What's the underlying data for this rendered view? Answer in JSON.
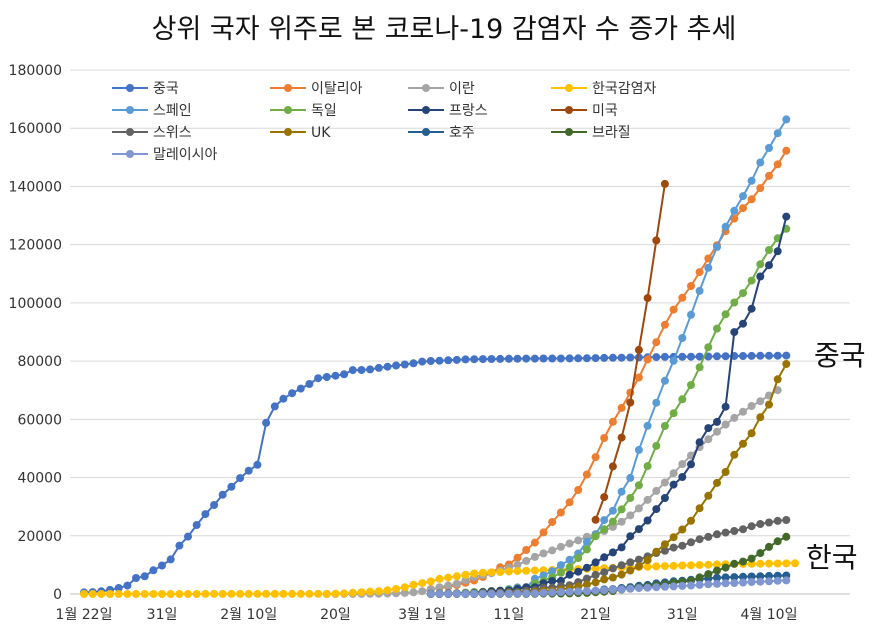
{
  "chart_data": {
    "type": "line",
    "title": "상위 국자 위주로 본 코로나-19 감염자 수 증가 추세",
    "xlabel": "",
    "ylabel": "",
    "ylim": [
      0,
      180000
    ],
    "yticks": [
      0,
      20000,
      40000,
      60000,
      80000,
      100000,
      120000,
      140000,
      160000,
      180000
    ],
    "xlim": [
      0,
      82
    ],
    "xticks": [
      {
        "day": 0,
        "label": "1월 22일"
      },
      {
        "day": 9,
        "label": "31일"
      },
      {
        "day": 19,
        "label": "2월 10일"
      },
      {
        "day": 29,
        "label": "20일"
      },
      {
        "day": 39,
        "label": "3월 1일"
      },
      {
        "day": 49,
        "label": "11일"
      },
      {
        "day": 59,
        "label": "21일"
      },
      {
        "day": 69,
        "label": "31일"
      },
      {
        "day": 79,
        "label": "4월 10일"
      }
    ],
    "grid": "horizontal",
    "legend_position": "top-left",
    "annotations": [
      {
        "text": "중국",
        "series": "중국"
      },
      {
        "text": "한국",
        "series": "한국감염자"
      }
    ],
    "series": [
      {
        "name": "중국",
        "color": "#4472c4",
        "start": 0,
        "values": [
          548,
          643,
          920,
          1406,
          2075,
          2877,
          5509,
          6087,
          8141,
          9802,
          11891,
          16630,
          19716,
          23707,
          27440,
          30587,
          34110,
          36814,
          39829,
          42354,
          44386,
          58818,
          64438,
          67100,
          68992,
          70548,
          72134,
          74138,
          74546,
          74999,
          75472,
          76922,
          76938,
          77152,
          77660,
          78065,
          78498,
          78824,
          79251,
          79826,
          80026,
          80151,
          80271,
          80422,
          80573,
          80652,
          80699,
          80735,
          80757,
          80793,
          80826,
          80849,
          80868,
          80881,
          80894,
          80904,
          80924,
          80955,
          80992,
          81030,
          81093,
          81125,
          81184,
          81236,
          81282,
          81317,
          81367,
          81439,
          81463,
          81488,
          81502,
          81550,
          81600,
          81650,
          81700,
          81740,
          81770,
          81800,
          81820,
          81850,
          81870,
          81900
        ]
      },
      {
        "name": "이탈리아",
        "color": "#ed7d31",
        "start": 40,
        "values": [
          1700,
          2036,
          2502,
          3089,
          3858,
          4636,
          5883,
          7375,
          9172,
          10149,
          12462,
          15113,
          17660,
          21157,
          24747,
          27980,
          31506,
          35713,
          41035,
          47021,
          53578,
          59138,
          63927,
          69176,
          74386,
          80589,
          86498,
          92472,
          97689,
          101739,
          105792,
          110574,
          115242,
          119827,
          124632,
          128948,
          132547,
          135586,
          139422,
          143626,
          147577,
          152271
        ]
      },
      {
        "name": "이란",
        "color": "#a5a5a5",
        "start": 28,
        "values": [
          2,
          5,
          18,
          28,
          43,
          61,
          95,
          139,
          245,
          388,
          593,
          978,
          1501,
          2336,
          2922,
          3513,
          4747,
          5823,
          6566,
          7161,
          8042,
          9000,
          10075,
          11364,
          12729,
          13938,
          14991,
          16169,
          17361,
          18407,
          19644,
          20610,
          21638,
          23049,
          24811,
          27017,
          29406,
          32332,
          35408,
          38309,
          41495,
          44605,
          47593,
          50468,
          53183,
          55743,
          58226,
          60500,
          62589,
          64586,
          66220,
          68192,
          70029
        ]
      },
      {
        "name": "한국감염자",
        "color": "#ffc000",
        "start": 0,
        "values": [
          1,
          1,
          2,
          2,
          3,
          4,
          4,
          4,
          4,
          11,
          12,
          15,
          15,
          16,
          19,
          23,
          24,
          24,
          25,
          27,
          28,
          28,
          28,
          28,
          28,
          29,
          30,
          31,
          51,
          104,
          204,
          433,
          602,
          833,
          977,
          1261,
          1766,
          2337,
          3150,
          3736,
          4335,
          5186,
          5621,
          6088,
          6593,
          7041,
          7314,
          7478,
          7513,
          7755,
          7869,
          7979,
          8086,
          8162,
          8236,
          8320,
          8413,
          8565,
          8652,
          8799,
          8897,
          8961,
          9037,
          9137,
          9241,
          9332,
          9478,
          9583,
          9661,
          9786,
          9887,
          9976,
          10062,
          10156,
          10237,
          10284,
          10331,
          10384,
          10423,
          10450,
          10480,
          10512,
          10537
        ]
      },
      {
        "name": "스페인",
        "color": "#5b9bd5",
        "start": 40,
        "values": [
          84,
          120,
          165,
          222,
          259,
          400,
          500,
          673,
          1073,
          1695,
          2277,
          2277,
          5232,
          6391,
          7798,
          9942,
          11748,
          13910,
          17963,
          20410,
          25374,
          28603,
          35136,
          39885,
          49515,
          57786,
          65719,
          73235,
          80110,
          87956,
          95923,
          104118,
          112065,
          119199,
          126168,
          131646,
          136675,
          141942,
          148220,
          153222,
          158273,
          163027
        ]
      },
      {
        "name": "독일",
        "color": "#70ad47",
        "start": 40,
        "values": [
          130,
          159,
          196,
          262,
          482,
          670,
          799,
          1040,
          1176,
          1457,
          1908,
          2078,
          3675,
          4585,
          5795,
          7272,
          9257,
          12327,
          15320,
          19848,
          22213,
          24873,
          29056,
          32986,
          37323,
          43938,
          50871,
          57695,
          62095,
          66885,
          71808,
          77872,
          84794,
          91159,
          96092,
          100123,
          103374,
          107663,
          113296,
          118181,
          122171,
          125452
        ]
      },
      {
        "name": "프랑스",
        "color": "#264478",
        "start": 40,
        "values": [
          100,
          130,
          191,
          204,
          288,
          380,
          656,
          959,
          1136,
          1219,
          1794,
          2293,
          2293,
          3661,
          4469,
          4499,
          6633,
          7652,
          9043,
          10871,
          12612,
          14282,
          16018,
          19856,
          22304,
          25233,
          29155,
          32964,
          37575,
          40174,
          44550,
          52128,
          56989,
          59105,
          64338,
          89953,
          92839,
          98010,
          109069,
          112950,
          117749,
          129654
        ]
      },
      {
        "name": "미국",
        "color": "#9e480e",
        "start": 59,
        "values": [
          25489,
          33276,
          43847,
          53740,
          65778,
          83836,
          101657,
          121478,
          140886
        ]
      },
      {
        "name": "스위스",
        "color": "#636363",
        "start": 40,
        "values": [
          42,
          56,
          90,
          114,
          214,
          268,
          337,
          374,
          491,
          652,
          652,
          1139,
          1359,
          2200,
          2200,
          2700,
          3028,
          4075,
          5294,
          6575,
          7474,
          8795,
          9877,
          10897,
          11811,
          12928,
          14076,
          14829,
          15922,
          16605,
          17768,
          18827,
          19606,
          20505,
          21100,
          21657,
          22253,
          23280,
          24051,
          24551,
          25107,
          25415
        ]
      },
      {
        "name": "UK",
        "color": "#997300",
        "start": 40,
        "values": [
          36,
          40,
          51,
          85,
          115,
          163,
          206,
          273,
          321,
          382,
          456,
          456,
          798,
          1140,
          1140,
          1543,
          1950,
          2626,
          3269,
          3983,
          5018,
          5683,
          6650,
          8077,
          9529,
          11658,
          14543,
          17089,
          19522,
          22141,
          25150,
          29474,
          33718,
          38168,
          41903,
          47806,
          51608,
          55242,
          60733,
          65077,
          73758,
          78991
        ]
      },
      {
        "name": "호주",
        "color": "#255e91",
        "start": 40,
        "values": [
          33,
          41,
          52,
          55,
          60,
          63,
          76,
          91,
          107,
          128,
          128,
          200,
          250,
          297,
          377,
          452,
          568,
          681,
          791,
          1071,
          1549,
          1682,
          2044,
          2364,
          2810,
          3143,
          3640,
          3984,
          4361,
          4559,
          4862,
          5116,
          5330,
          5550,
          5687,
          5797,
          5895,
          6010,
          6108,
          6215,
          6303,
          6351
        ]
      },
      {
        "name": "브라질",
        "color": "#43682b",
        "start": 40,
        "values": [
          2,
          2,
          2,
          2,
          4,
          4,
          13,
          13,
          20,
          25,
          31,
          38,
          52,
          151,
          151,
          162,
          200,
          321,
          372,
          621,
          793,
          1021,
          1546,
          1924,
          2247,
          2554,
          2985,
          3417,
          3904,
          4256,
          4579,
          5717,
          6836,
          8044,
          9056,
          10360,
          11130,
          12161,
          14034,
          16170,
          18092,
          19638
        ]
      },
      {
        "name": "말레이시아",
        "color": "#7f96d1",
        "start": 40,
        "values": [
          29,
          36,
          50,
          50,
          83,
          93,
          99,
          117,
          129,
          149,
          149,
          197,
          238,
          428,
          566,
          673,
          790,
          900,
          1030,
          1183,
          1306,
          1518,
          1624,
          1796,
          2031,
          2161,
          2320,
          2470,
          2626,
          2766,
          2908,
          3116,
          3333,
          3483,
          3662,
          3793,
          3963,
          4119,
          4228,
          4346,
          4530,
          4683
        ]
      }
    ]
  }
}
